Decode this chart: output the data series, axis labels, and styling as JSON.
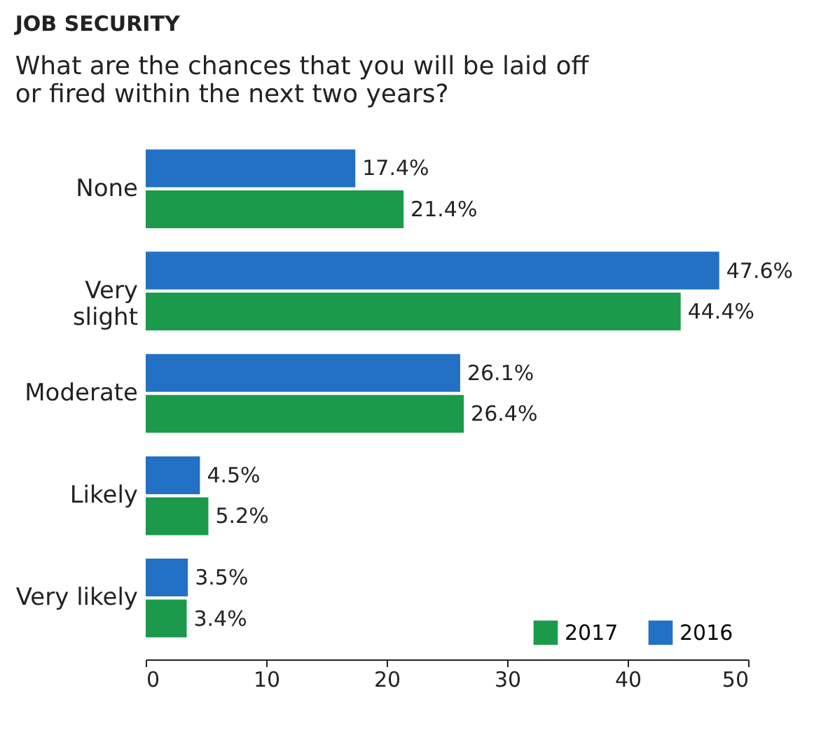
{
  "chart_data": {
    "type": "bar",
    "orientation": "horizontal",
    "title": "JOB SECURITY",
    "subtitle": "What are the chances that you will be laid off\nor fired within the next two years?",
    "categories": [
      "None",
      "Very\nslight",
      "Moderate",
      "Likely",
      "Very likely"
    ],
    "series": [
      {
        "name": "2016",
        "color": "#2271c4",
        "values": [
          17.4,
          47.6,
          26.1,
          4.5,
          3.5
        ],
        "value_labels": [
          "17.4%",
          "47.6%",
          "26.1%",
          "4.5%",
          "3.5%"
        ]
      },
      {
        "name": "2017",
        "color": "#1a9a4a",
        "values": [
          21.4,
          44.4,
          26.4,
          5.2,
          3.4
        ],
        "value_labels": [
          "21.4%",
          "44.4%",
          "26.4%",
          "5.2%",
          "3.4%"
        ]
      }
    ],
    "xlim": [
      0,
      50
    ],
    "xticks": [
      0,
      10,
      20,
      30,
      40,
      50
    ],
    "grid": false,
    "legend": "bottom right"
  }
}
